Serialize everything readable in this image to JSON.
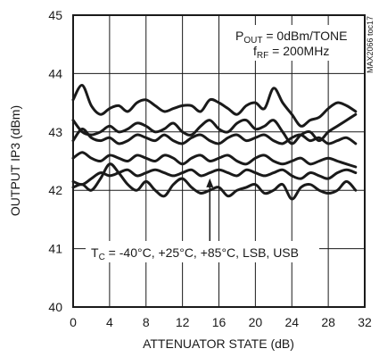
{
  "chart_data": {
    "type": "line",
    "title": "",
    "xlabel": "ATTENUATOR STATE (dB)",
    "ylabel": "OUTPUT IP3 (dBm)",
    "xlim": [
      0,
      32
    ],
    "ylim": [
      40,
      45
    ],
    "x_ticks": [
      0,
      4,
      8,
      12,
      16,
      20,
      24,
      28,
      32
    ],
    "y_ticks": [
      40,
      41,
      42,
      43,
      44,
      45
    ],
    "x_tick_labels": [
      "0",
      "4",
      "8",
      "12",
      "16",
      "20",
      "24",
      "28",
      "32"
    ],
    "y_tick_labels": [
      "40",
      "41",
      "42",
      "43",
      "44",
      "45"
    ],
    "grid": true,
    "legend": "none",
    "annotations": {
      "conditions": {
        "line1_main": "P",
        "line1_sub": "OUT",
        "line1_rest": " = 0dBm/TONE",
        "line2_main": "f",
        "line2_sub": "RF",
        "line2_rest": " = 200MHz"
      },
      "temps": {
        "main": "T",
        "sub": "C",
        "rest": " = -40°C, +25°C, +85°C, LSB, USB"
      },
      "arrow_target": {
        "x": 15,
        "y": 42.25
      },
      "figure_id": "MAX2066 toc17"
    },
    "x": [
      0,
      1,
      2,
      3,
      4,
      5,
      6,
      7,
      8,
      9,
      10,
      11,
      12,
      13,
      14,
      15,
      16,
      17,
      18,
      19,
      20,
      21,
      22,
      23,
      24,
      25,
      26,
      27,
      28,
      29,
      30,
      31
    ],
    "series": [
      {
        "values": [
          43.55,
          43.8,
          43.45,
          43.3,
          43.4,
          43.45,
          43.35,
          43.5,
          43.55,
          43.45,
          43.35,
          43.4,
          43.45,
          43.45,
          43.35,
          43.55,
          43.5,
          43.4,
          43.3,
          43.45,
          43.5,
          43.4,
          43.75,
          43.5,
          43.3,
          43.1,
          43.2,
          43.25,
          43.4,
          43.5,
          43.45,
          43.35
        ]
      },
      {
        "values": [
          43.2,
          43.0,
          42.95,
          43.0,
          43.1,
          43.0,
          43.05,
          43.15,
          43.1,
          43.0,
          43.05,
          43.15,
          43.0,
          42.95,
          43.1,
          43.2,
          43.05,
          43.0,
          43.15,
          43.2,
          43.05,
          43.1,
          43.2,
          43.0,
          42.8,
          42.95,
          43.0,
          42.85,
          43.0,
          43.1,
          43.2,
          43.3
        ]
      },
      {
        "values": [
          42.85,
          43.05,
          42.9,
          42.85,
          42.9,
          42.8,
          42.85,
          42.95,
          42.9,
          42.85,
          42.95,
          42.85,
          42.8,
          42.9,
          42.95,
          42.85,
          42.8,
          42.9,
          42.95,
          42.85,
          42.9,
          42.95,
          42.85,
          42.8,
          42.9,
          42.95,
          42.85,
          42.9,
          42.8,
          42.85,
          42.9,
          42.8
        ]
      },
      {
        "values": [
          42.55,
          42.65,
          42.55,
          42.5,
          42.6,
          42.55,
          42.5,
          42.6,
          42.55,
          42.5,
          42.6,
          42.55,
          42.45,
          42.55,
          42.6,
          42.5,
          42.55,
          42.6,
          42.5,
          42.45,
          42.55,
          42.6,
          42.5,
          42.45,
          42.5,
          42.55,
          42.45,
          42.5,
          42.55,
          42.5,
          42.45,
          42.4
        ]
      },
      {
        "values": [
          42.15,
          42.1,
          42.2,
          42.3,
          42.25,
          42.3,
          42.35,
          42.25,
          42.3,
          42.35,
          42.3,
          42.25,
          42.3,
          42.35,
          42.25,
          42.3,
          42.35,
          42.3,
          42.25,
          42.35,
          42.3,
          42.25,
          42.3,
          42.35,
          42.25,
          42.2,
          42.3,
          42.25,
          42.2,
          42.3,
          42.35,
          42.3
        ]
      },
      {
        "values": [
          42.05,
          42.1,
          42.0,
          42.2,
          42.45,
          42.3,
          42.1,
          42.0,
          42.15,
          42.0,
          41.9,
          42.1,
          42.2,
          42.05,
          41.95,
          42.0,
          42.05,
          41.9,
          42.0,
          42.05,
          42.1,
          41.95,
          42.0,
          42.1,
          41.85,
          42.05,
          42.1,
          42.0,
          41.95,
          42.0,
          42.15,
          42.0
        ]
      }
    ]
  }
}
